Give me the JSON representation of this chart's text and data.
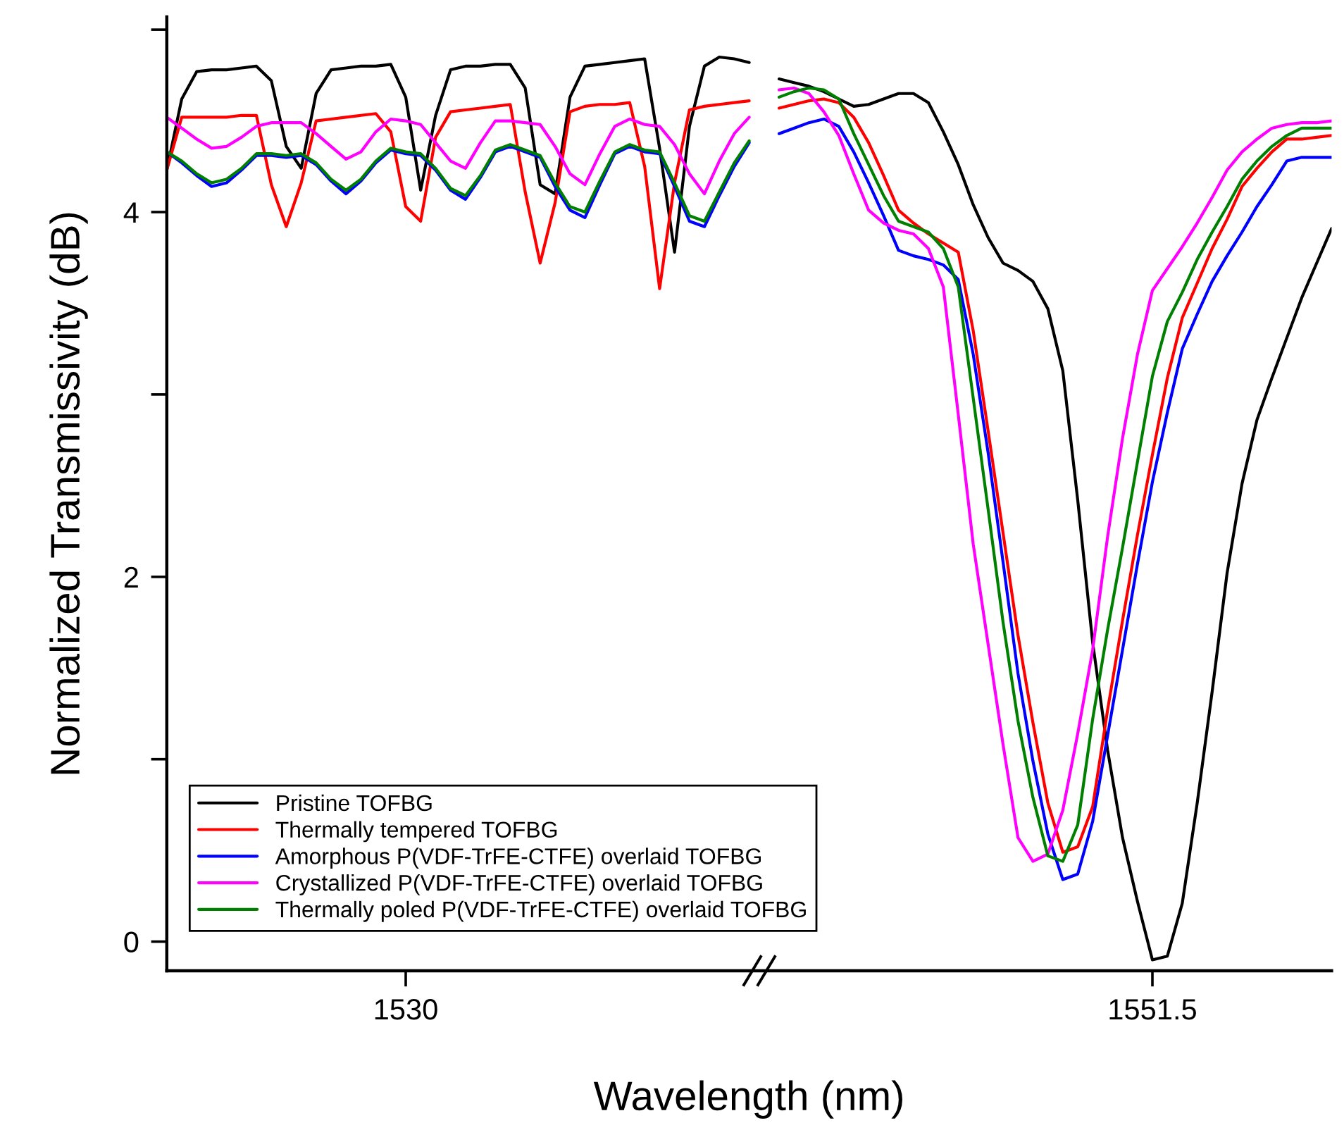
{
  "chart_data": {
    "type": "line",
    "xlabel": "Wavelength (nm)",
    "ylabel": "Normalized Transmissivity (dB)",
    "categories": [
      null,
      null,
      null,
      null,
      null,
      null,
      null,
      null,
      null,
      null,
      null,
      null,
      null,
      null,
      null,
      null,
      "1530",
      null,
      null,
      null,
      null,
      null,
      null,
      null,
      null,
      null,
      null,
      null,
      null,
      null,
      null,
      null,
      null,
      null,
      null,
      null,
      null,
      null,
      null,
      null,
      null,
      null,
      null,
      null,
      null,
      null,
      null,
      null,
      null,
      null,
      null,
      null,
      null,
      null,
      null,
      null,
      null,
      null,
      null,
      null,
      null,
      null,
      null,
      null,
      null,
      null,
      "1551.5",
      null,
      null,
      null,
      null,
      null,
      null,
      null,
      null,
      null,
      null,
      null,
      null
    ],
    "ylim": [
      -0.16,
      5.07
    ],
    "yticks": [
      0,
      {
        "value": 1,
        "label": null
      },
      2,
      {
        "value": 3,
        "label": null
      },
      4,
      {
        "value": 5,
        "label": null
      }
    ],
    "legend": "bottom left",
    "grid": false,
    "series": [
      {
        "name": "Pristine TOFBG",
        "color": "#000000",
        "values": [
          4.23,
          4.62,
          4.77,
          4.78,
          4.78,
          4.79,
          4.8,
          4.72,
          4.36,
          4.24,
          4.65,
          4.78,
          4.79,
          4.8,
          4.8,
          4.81,
          4.63,
          4.12,
          4.53,
          4.78,
          4.8,
          4.8,
          4.81,
          4.81,
          4.68,
          4.15,
          4.1,
          4.63,
          4.8,
          4.81,
          4.82,
          4.83,
          4.84,
          4.35,
          3.78,
          4.47,
          4.8,
          4.85,
          4.84,
          4.82,
          null,
          4.73,
          4.71,
          4.69,
          4.66,
          4.62,
          4.58,
          4.59,
          4.62,
          4.65,
          4.65,
          4.6,
          4.44,
          4.26,
          4.04,
          3.86,
          3.72,
          3.68,
          3.62,
          3.47,
          3.13,
          2.42,
          1.64,
          1.05,
          0.57,
          0.22,
          -0.1,
          -0.08,
          0.21,
          0.76,
          1.37,
          2.02,
          2.51,
          2.86,
          3.09,
          3.31,
          3.53,
          3.72,
          3.91
        ]
      },
      {
        "name": "Thermally tempered TOFBG",
        "color": "#ff0000",
        "values": [
          4.23,
          4.52,
          4.52,
          4.52,
          4.52,
          4.53,
          4.53,
          4.15,
          3.92,
          4.16,
          4.5,
          4.51,
          4.52,
          4.53,
          4.54,
          4.44,
          4.03,
          3.95,
          4.41,
          4.55,
          4.56,
          4.57,
          4.58,
          4.59,
          4.11,
          3.72,
          4.05,
          4.55,
          4.58,
          4.59,
          4.59,
          4.6,
          4.25,
          3.58,
          4.16,
          4.56,
          4.58,
          4.59,
          4.6,
          4.61,
          null,
          4.57,
          4.59,
          4.61,
          4.62,
          4.6,
          4.52,
          4.38,
          4.2,
          4.01,
          3.94,
          3.88,
          3.83,
          3.78,
          3.35,
          2.8,
          2.24,
          1.68,
          1.2,
          0.76,
          0.49,
          0.52,
          0.74,
          1.27,
          1.76,
          2.23,
          2.67,
          3.09,
          3.42,
          3.61,
          3.8,
          3.96,
          4.14,
          4.24,
          4.33,
          4.4,
          4.4,
          4.41,
          4.42
        ]
      },
      {
        "name": "Amorphous P(VDF-TrFE-CTFE) overlaid TOFBG",
        "color": "#0000ff",
        "values": [
          4.33,
          4.27,
          4.2,
          4.14,
          4.16,
          4.23,
          4.31,
          4.31,
          4.3,
          4.31,
          4.26,
          4.17,
          4.1,
          4.17,
          4.27,
          4.34,
          4.32,
          4.31,
          4.23,
          4.12,
          4.07,
          4.19,
          4.33,
          4.36,
          4.33,
          4.3,
          4.14,
          4.01,
          3.97,
          4.15,
          4.32,
          4.36,
          4.33,
          4.32,
          4.14,
          3.95,
          3.92,
          4.09,
          4.25,
          4.38,
          null,
          4.43,
          4.46,
          4.49,
          4.51,
          4.47,
          4.33,
          4.16,
          3.98,
          3.79,
          3.76,
          3.74,
          3.71,
          3.63,
          3.22,
          2.68,
          2.08,
          1.47,
          0.99,
          0.59,
          0.34,
          0.37,
          0.66,
          1.13,
          1.6,
          2.07,
          2.52,
          2.9,
          3.25,
          3.44,
          3.62,
          3.76,
          3.89,
          4.03,
          4.15,
          4.28,
          4.3,
          4.3,
          4.3
        ]
      },
      {
        "name": "Crystallized P(VDF-TrFE-CTFE) overlaid TOFBG",
        "color": "#ff00ff",
        "values": [
          4.52,
          4.46,
          4.4,
          4.35,
          4.36,
          4.41,
          4.47,
          4.49,
          4.49,
          4.49,
          4.43,
          4.36,
          4.29,
          4.33,
          4.44,
          4.51,
          4.5,
          4.48,
          4.38,
          4.28,
          4.24,
          4.38,
          4.5,
          4.5,
          4.49,
          4.48,
          4.36,
          4.21,
          4.15,
          4.32,
          4.47,
          4.51,
          4.48,
          4.47,
          4.37,
          4.21,
          4.1,
          4.28,
          4.43,
          4.52,
          null,
          4.67,
          4.68,
          4.65,
          4.55,
          4.42,
          4.21,
          4.01,
          3.94,
          3.9,
          3.88,
          3.8,
          3.59,
          2.89,
          2.18,
          1.63,
          1.08,
          0.57,
          0.44,
          0.48,
          0.72,
          1.14,
          1.6,
          2.22,
          2.76,
          3.22,
          3.57,
          3.69,
          3.81,
          3.94,
          4.08,
          4.23,
          4.33,
          4.4,
          4.46,
          4.48,
          4.49,
          4.49,
          4.5
        ]
      },
      {
        "name": "Thermally poled P(VDF-TrFE-CTFE) overlaid TOFBG",
        "color": "#008000",
        "values": [
          4.33,
          4.28,
          4.21,
          4.16,
          4.18,
          4.24,
          4.32,
          4.32,
          4.31,
          4.32,
          4.27,
          4.18,
          4.12,
          4.18,
          4.28,
          4.35,
          4.33,
          4.32,
          4.24,
          4.13,
          4.09,
          4.2,
          4.34,
          4.37,
          4.34,
          4.31,
          4.16,
          4.03,
          4.0,
          4.17,
          4.33,
          4.37,
          4.34,
          4.33,
          4.16,
          3.98,
          3.95,
          4.11,
          4.27,
          4.39,
          null,
          4.63,
          4.66,
          4.68,
          4.67,
          4.62,
          4.43,
          4.26,
          4.09,
          3.95,
          3.92,
          3.89,
          3.8,
          3.59,
          2.98,
          2.37,
          1.75,
          1.21,
          0.79,
          0.47,
          0.44,
          0.64,
          1.22,
          1.71,
          2.16,
          2.63,
          3.1,
          3.4,
          3.56,
          3.74,
          3.89,
          4.03,
          4.18,
          4.28,
          4.36,
          4.42,
          4.46,
          4.46,
          4.46
        ]
      }
    ]
  }
}
